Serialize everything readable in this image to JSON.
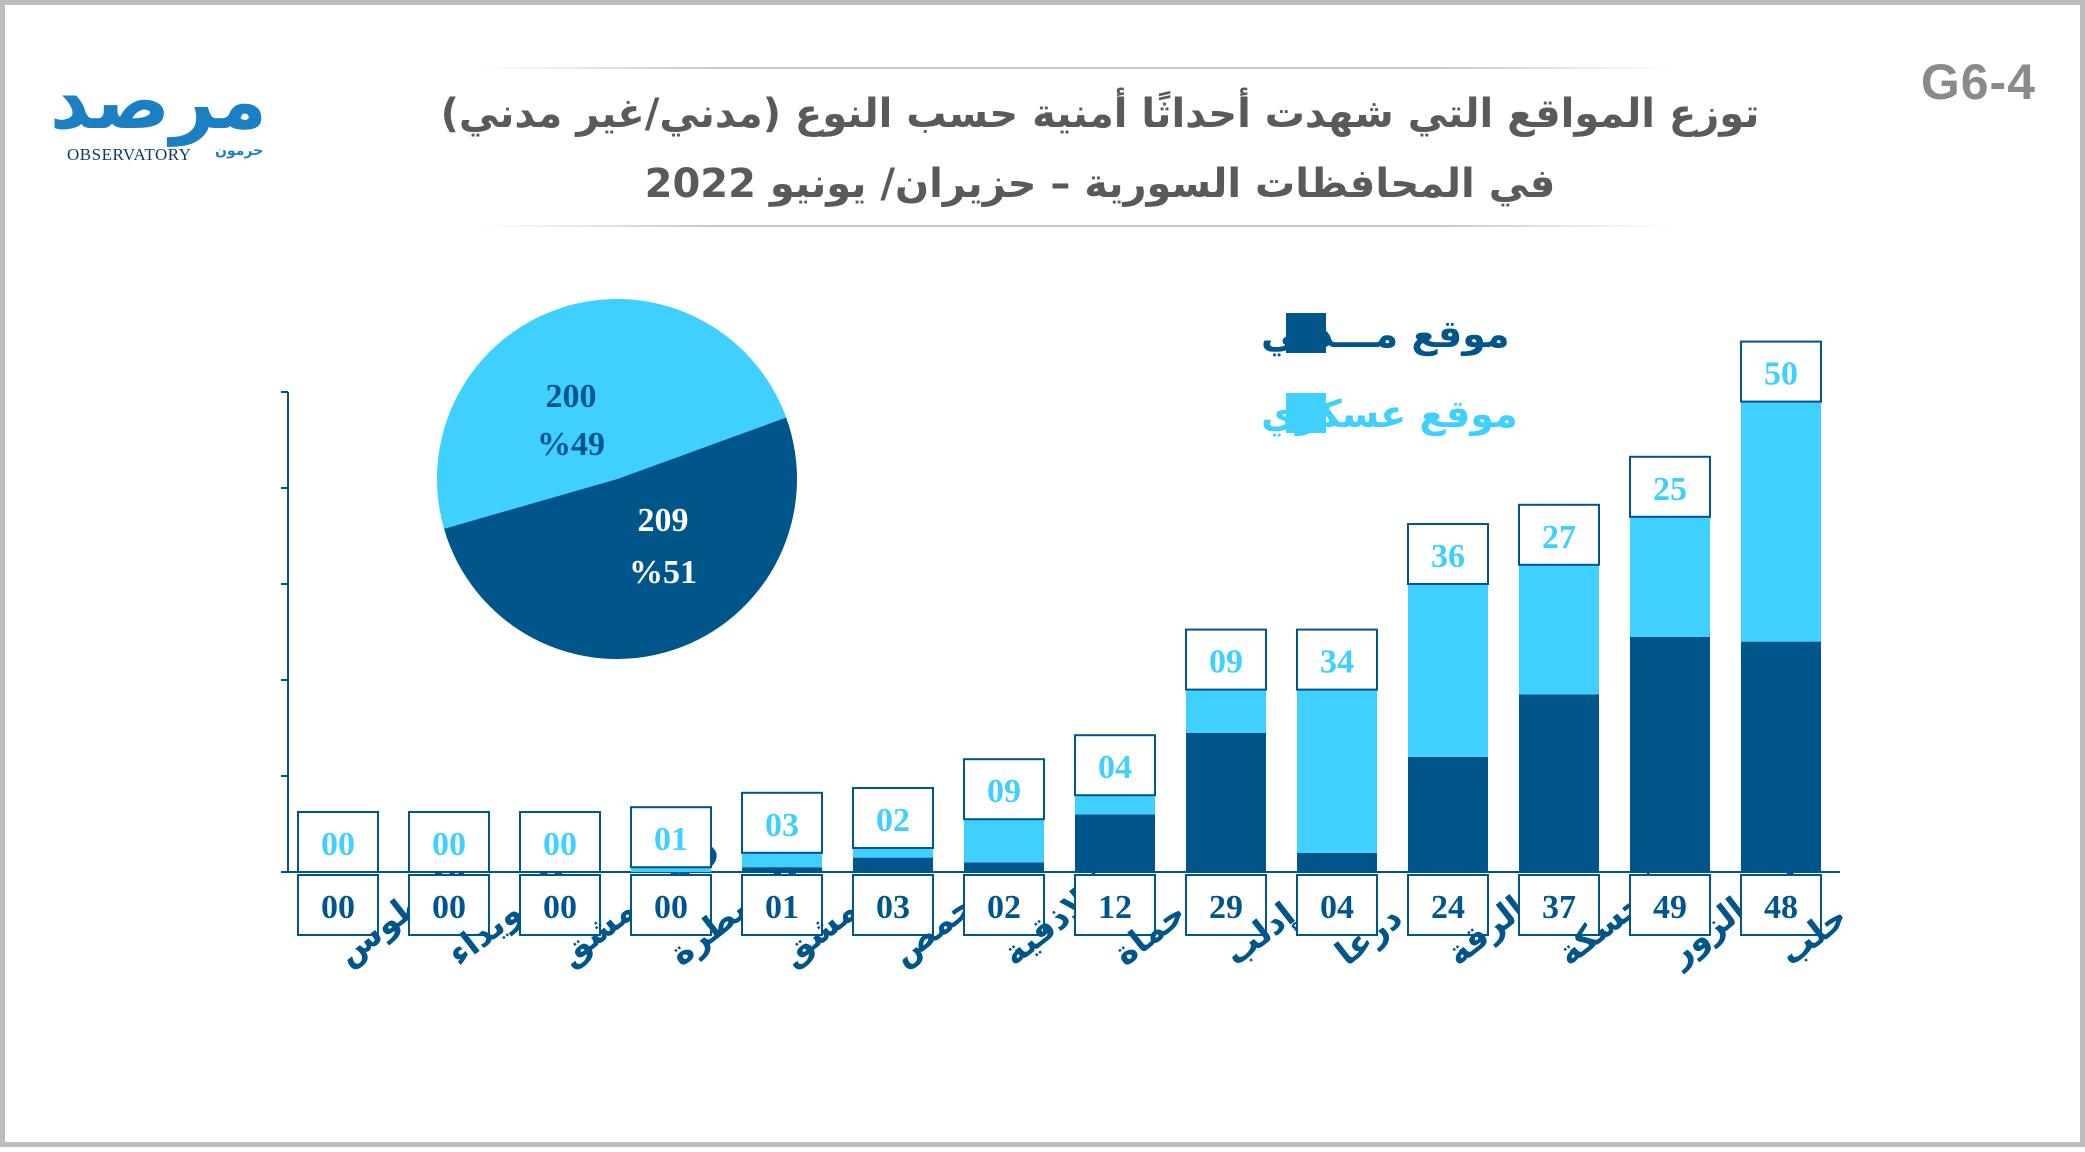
{
  "header": {
    "code": "G6-4",
    "title_line1": "توزع المواقع التي شهدت أحداثًا أمنية حسب النوع (مدني/غير مدني)",
    "title_line2": "في المحافظات السورية – حزيران/ يونيو 2022"
  },
  "logo": {
    "arabic": "مرصد",
    "english": "OBSERVATORY",
    "arabic_small": "حرمون"
  },
  "colors": {
    "civilian": "#00558a",
    "military": "#3fd0ff",
    "axis": "#00558a",
    "label": "#00558a"
  },
  "legend": {
    "civilian": "موقع مـــدني",
    "military": "موقع عسكري"
  },
  "chart_data": {
    "type": "bar",
    "stacked": true,
    "categories": [
      "طرطوس",
      "السويداء",
      "ريف دمشق",
      "القنيطرة",
      "دمشق",
      "حمص",
      "اللاذقية",
      "حماة",
      "إدلب",
      "درعا",
      "الرقة",
      "الحسكة",
      "دير الزور",
      "حلب"
    ],
    "series": [
      {
        "name": "موقع مـــدني",
        "values": [
          0,
          0,
          0,
          0,
          1,
          3,
          2,
          12,
          29,
          4,
          24,
          37,
          49,
          48
        ],
        "labels": [
          "00",
          "00",
          "00",
          "00",
          "01",
          "03",
          "02",
          "12",
          "29",
          "04",
          "24",
          "37",
          "49",
          "48"
        ]
      },
      {
        "name": "موقع عسكري",
        "values": [
          0,
          0,
          0,
          1,
          3,
          2,
          9,
          4,
          9,
          34,
          36,
          27,
          25,
          50
        ],
        "labels": [
          "00",
          "00",
          "00",
          "01",
          "03",
          "02",
          "09",
          "04",
          "09",
          "34",
          "36",
          "27",
          "25",
          "50"
        ]
      }
    ],
    "ylim": [
      0,
      100
    ],
    "pie": {
      "slices": [
        {
          "name": "موقع مـــدني",
          "value": 209,
          "percent_label": "%51"
        },
        {
          "name": "موقع عسكري",
          "value": 200,
          "percent_label": "%49"
        }
      ]
    }
  }
}
